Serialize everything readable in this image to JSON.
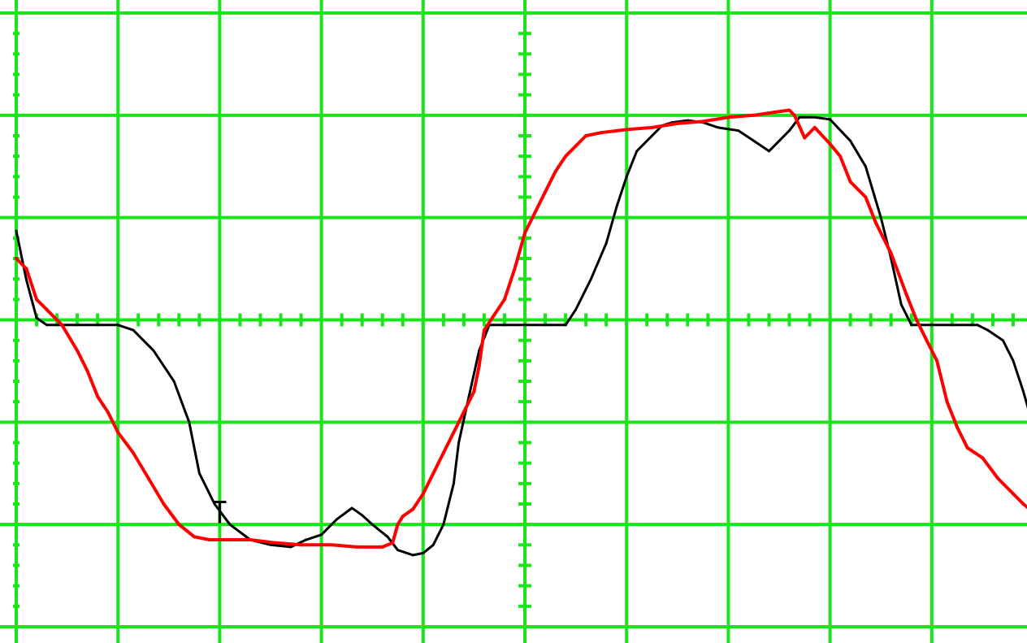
{
  "chart_data": {
    "type": "line",
    "title": "",
    "xlabel": "",
    "ylabel": "",
    "xlim": [
      0,
      10
    ],
    "ylim": [
      -3,
      3
    ],
    "grid": true,
    "grid_color": "#19e619",
    "background_color": "#ffffff",
    "x_divisions": 10,
    "y_divisions": 6,
    "minor_ticks_per_division": 5,
    "series": [
      {
        "color": "#000000",
        "points": [
          [
            0.0,
            0.87
          ],
          [
            0.1,
            0.39
          ],
          [
            0.2,
            0.02
          ],
          [
            0.3,
            -0.05
          ],
          [
            0.5,
            -0.05
          ],
          [
            0.8,
            -0.05
          ],
          [
            1.0,
            -0.05
          ],
          [
            1.15,
            -0.1
          ],
          [
            1.35,
            -0.3
          ],
          [
            1.55,
            -0.6
          ],
          [
            1.7,
            -1.0
          ],
          [
            1.8,
            -1.5
          ],
          [
            1.95,
            -1.8
          ],
          [
            2.1,
            -2.0
          ],
          [
            2.3,
            -2.15
          ],
          [
            2.5,
            -2.2
          ],
          [
            2.7,
            -2.22
          ],
          [
            2.85,
            -2.15
          ],
          [
            3.0,
            -2.1
          ],
          [
            3.15,
            -1.95
          ],
          [
            3.3,
            -1.84
          ],
          [
            3.4,
            -1.91
          ],
          [
            3.5,
            -2.0
          ],
          [
            3.65,
            -2.12
          ],
          [
            3.75,
            -2.25
          ],
          [
            3.9,
            -2.3
          ],
          [
            4.0,
            -2.28
          ],
          [
            4.1,
            -2.2
          ],
          [
            4.2,
            -2.0
          ],
          [
            4.3,
            -1.6
          ],
          [
            4.35,
            -1.2
          ],
          [
            4.45,
            -0.75
          ],
          [
            4.55,
            -0.3
          ],
          [
            4.65,
            -0.05
          ],
          [
            4.9,
            -0.05
          ],
          [
            5.05,
            -0.05
          ],
          [
            5.25,
            -0.05
          ],
          [
            5.4,
            -0.05
          ],
          [
            5.5,
            0.1
          ],
          [
            5.65,
            0.4
          ],
          [
            5.8,
            0.75
          ],
          [
            5.9,
            1.1
          ],
          [
            6.0,
            1.4
          ],
          [
            6.1,
            1.65
          ],
          [
            6.25,
            1.8
          ],
          [
            6.35,
            1.9
          ],
          [
            6.45,
            1.93
          ],
          [
            6.6,
            1.95
          ],
          [
            6.75,
            1.93
          ],
          [
            6.9,
            1.88
          ],
          [
            7.1,
            1.85
          ],
          [
            7.25,
            1.75
          ],
          [
            7.4,
            1.65
          ],
          [
            7.5,
            1.75
          ],
          [
            7.6,
            1.85
          ],
          [
            7.7,
            1.98
          ],
          [
            7.85,
            1.98
          ],
          [
            8.0,
            1.96
          ],
          [
            8.2,
            1.75
          ],
          [
            8.35,
            1.5
          ],
          [
            8.5,
            1.0
          ],
          [
            8.6,
            0.6
          ],
          [
            8.7,
            0.15
          ],
          [
            8.8,
            -0.05
          ],
          [
            9.0,
            -0.05
          ],
          [
            9.25,
            -0.05
          ],
          [
            9.45,
            -0.05
          ],
          [
            9.55,
            -0.1
          ],
          [
            9.7,
            -0.2
          ],
          [
            9.8,
            -0.4
          ],
          [
            9.9,
            -0.7
          ],
          [
            10.0,
            -1.05
          ]
        ]
      },
      {
        "color": "#ff0000",
        "points": [
          [
            0.0,
            0.6
          ],
          [
            0.1,
            0.5
          ],
          [
            0.2,
            0.2
          ],
          [
            0.3,
            0.1
          ],
          [
            0.45,
            -0.05
          ],
          [
            0.6,
            -0.3
          ],
          [
            0.7,
            -0.5
          ],
          [
            0.8,
            -0.75
          ],
          [
            0.9,
            -0.9
          ],
          [
            1.0,
            -1.1
          ],
          [
            1.15,
            -1.3
          ],
          [
            1.3,
            -1.55
          ],
          [
            1.45,
            -1.8
          ],
          [
            1.6,
            -2.0
          ],
          [
            1.75,
            -2.12
          ],
          [
            1.9,
            -2.15
          ],
          [
            2.1,
            -2.15
          ],
          [
            2.3,
            -2.15
          ],
          [
            2.55,
            -2.18
          ],
          [
            2.8,
            -2.2
          ],
          [
            3.1,
            -2.2
          ],
          [
            3.35,
            -2.22
          ],
          [
            3.6,
            -2.22
          ],
          [
            3.7,
            -2.18
          ],
          [
            3.75,
            -2.0
          ],
          [
            3.8,
            -1.92
          ],
          [
            3.9,
            -1.85
          ],
          [
            4.0,
            -1.7
          ],
          [
            4.1,
            -1.5
          ],
          [
            4.2,
            -1.3
          ],
          [
            4.3,
            -1.1
          ],
          [
            4.4,
            -0.9
          ],
          [
            4.5,
            -0.7
          ],
          [
            4.55,
            -0.45
          ],
          [
            4.6,
            -0.1
          ],
          [
            4.7,
            0.05
          ],
          [
            4.8,
            0.2
          ],
          [
            4.9,
            0.5
          ],
          [
            5.0,
            0.85
          ],
          [
            5.1,
            1.05
          ],
          [
            5.2,
            1.25
          ],
          [
            5.3,
            1.45
          ],
          [
            5.4,
            1.6
          ],
          [
            5.5,
            1.7
          ],
          [
            5.6,
            1.8
          ],
          [
            5.75,
            1.83
          ],
          [
            6.0,
            1.86
          ],
          [
            6.25,
            1.88
          ],
          [
            6.5,
            1.92
          ],
          [
            6.75,
            1.94
          ],
          [
            7.0,
            1.98
          ],
          [
            7.25,
            2.0
          ],
          [
            7.45,
            2.03
          ],
          [
            7.6,
            2.05
          ],
          [
            7.65,
            2.0
          ],
          [
            7.75,
            1.78
          ],
          [
            7.85,
            1.88
          ],
          [
            8.0,
            1.72
          ],
          [
            8.1,
            1.6
          ],
          [
            8.2,
            1.35
          ],
          [
            8.35,
            1.2
          ],
          [
            8.45,
            0.95
          ],
          [
            8.6,
            0.65
          ],
          [
            8.75,
            0.25
          ],
          [
            8.85,
            0.0
          ],
          [
            8.95,
            -0.2
          ],
          [
            9.05,
            -0.4
          ],
          [
            9.15,
            -0.8
          ],
          [
            9.25,
            -1.05
          ],
          [
            9.35,
            -1.25
          ],
          [
            9.5,
            -1.35
          ],
          [
            9.65,
            -1.55
          ],
          [
            9.8,
            -1.7
          ],
          [
            9.9,
            -1.8
          ],
          [
            10.0,
            -1.88
          ]
        ]
      }
    ],
    "markers": [
      {
        "shape": "small-bracket",
        "x": 2.0,
        "y": -1.78,
        "color": "#000000"
      }
    ]
  }
}
